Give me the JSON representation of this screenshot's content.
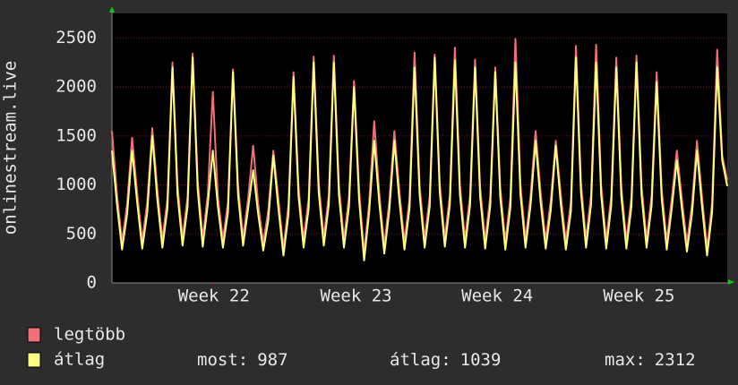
{
  "chart_data": {
    "type": "line",
    "y_label": "onlinestream.live",
    "ylim": [
      0,
      2750
    ],
    "yticks": [
      0,
      500,
      1000,
      1500,
      2000,
      2500
    ],
    "grid": true,
    "xlim": [
      0,
      122
    ],
    "xticks": [
      {
        "value": 20.2,
        "label": "Week 22"
      },
      {
        "value": 48.4,
        "label": "Week 23"
      },
      {
        "value": 76.4,
        "label": "Week 24"
      },
      {
        "value": 104.5,
        "label": "Week 25"
      }
    ],
    "series": [
      {
        "name": "legtöbb",
        "color": "#f07078",
        "values": [
          1550,
          900,
          420,
          800,
          1480,
          920,
          430,
          820,
          1580,
          950,
          440,
          860,
          2250,
          1000,
          460,
          880,
          2340,
          1050,
          450,
          900,
          1950,
          880,
          440,
          820,
          2180,
          1000,
          460,
          860,
          1400,
          800,
          410,
          740,
          1350,
          860,
          350,
          800,
          2150,
          980,
          440,
          860,
          2310,
          1020,
          460,
          900,
          2320,
          1000,
          440,
          880,
          2060,
          950,
          300,
          820,
          1650,
          920,
          380,
          840,
          1550,
          930,
          420,
          860,
          2350,
          1000,
          440,
          880,
          2330,
          1020,
          450,
          900,
          2400,
          1000,
          440,
          890,
          2280,
          980,
          430,
          880,
          2200,
          970,
          420,
          870,
          2490,
          1000,
          440,
          890,
          1550,
          920,
          430,
          840,
          1450,
          900,
          420,
          830,
          2420,
          1020,
          440,
          900,
          2430,
          1000,
          430,
          890,
          2300,
          980,
          430,
          880,
          2320,
          1000,
          440,
          890,
          2150,
          960,
          420,
          860,
          1350,
          860,
          400,
          800,
          1450,
          880,
          350,
          820,
          2380,
          1300,
          1050
        ]
      },
      {
        "name": "átlag",
        "color": "#ffff80",
        "values": [
          1350,
          800,
          340,
          700,
          1350,
          820,
          350,
          720,
          1500,
          850,
          360,
          760,
          2200,
          900,
          380,
          780,
          2300,
          950,
          370,
          800,
          1350,
          780,
          360,
          720,
          2150,
          900,
          380,
          760,
          1150,
          700,
          330,
          640,
          1300,
          760,
          280,
          700,
          2100,
          880,
          360,
          760,
          2250,
          920,
          380,
          800,
          2250,
          900,
          360,
          780,
          2000,
          850,
          230,
          720,
          1450,
          820,
          300,
          740,
          1450,
          830,
          340,
          760,
          2200,
          900,
          360,
          780,
          2300,
          920,
          370,
          800,
          2270,
          900,
          360,
          790,
          2200,
          880,
          350,
          780,
          2150,
          870,
          340,
          770,
          2250,
          900,
          360,
          790,
          1450,
          820,
          350,
          740,
          1400,
          800,
          340,
          730,
          2300,
          920,
          360,
          800,
          2250,
          900,
          350,
          790,
          2200,
          880,
          350,
          780,
          2250,
          900,
          360,
          790,
          2050,
          860,
          340,
          760,
          1250,
          760,
          320,
          700,
          1350,
          780,
          280,
          720,
          2200,
          1250,
          987
        ]
      }
    ],
    "stats": [
      {
        "label": "most:",
        "value": 987
      },
      {
        "label": "átlag:",
        "value": 1039
      },
      {
        "label": "max:",
        "value": 2312
      }
    ]
  }
}
